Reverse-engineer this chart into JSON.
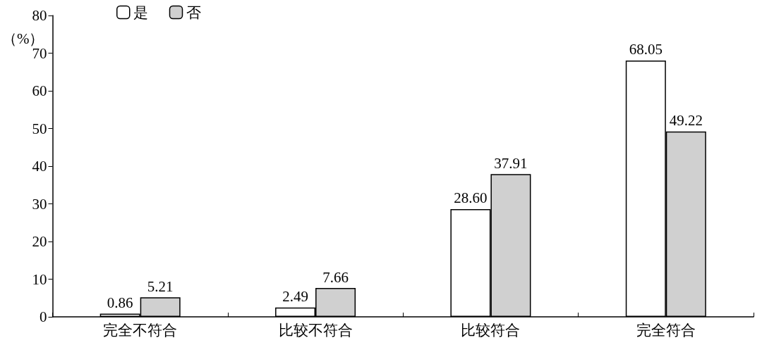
{
  "chart_data": {
    "type": "bar",
    "ylabel": "（%）",
    "categories": [
      "完全不符合",
      "比较不符合",
      "比较符合",
      "完全符合"
    ],
    "series": [
      {
        "name": "是",
        "color": "#ffffff",
        "values": [
          0.86,
          2.49,
          28.6,
          68.05
        ],
        "value_labels": [
          "0.86",
          "2.49",
          "28.60",
          "68.05"
        ]
      },
      {
        "name": "否",
        "color": "#d0d0d0",
        "values": [
          5.21,
          7.66,
          37.91,
          49.22
        ],
        "value_labels": [
          "5.21",
          "7.66",
          "37.91",
          "49.22"
        ]
      }
    ],
    "ylim": [
      0,
      80
    ],
    "yticks": [
      0,
      10,
      20,
      30,
      40,
      50,
      60,
      70,
      80
    ],
    "grid": false,
    "legend": "top left"
  }
}
